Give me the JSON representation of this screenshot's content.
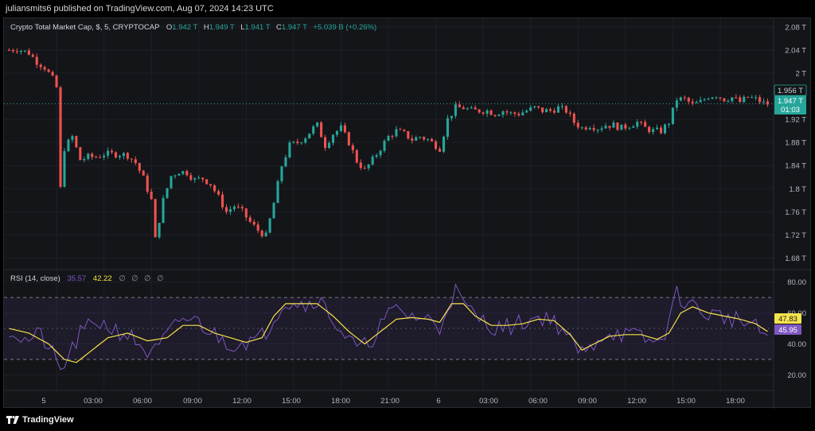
{
  "header": {
    "published_text": "juliansmits6 published on TradingView.com, Aug 07, 2024 14:23 UTC"
  },
  "legend": {
    "symbol": "Crypto Total Market Cap, $, 5, CRYPTOCAP",
    "o_label": "O",
    "o_value": "1.942 T",
    "h_label": "H",
    "h_value": "1.949 T",
    "l_label": "L",
    "l_value": "1.941 T",
    "c_label": "C",
    "c_value": "1.947 T",
    "change": "+5.039 B (+0.26%)"
  },
  "price_axis": {
    "ticks": [
      "2.08 T",
      "2.04 T",
      "2 T",
      "1.92 T",
      "1.88 T",
      "1.84 T",
      "1.8 T",
      "1.76 T",
      "1.72 T",
      "1.68 T"
    ],
    "tick_values": [
      2.08,
      2.04,
      2.0,
      1.92,
      1.88,
      1.84,
      1.8,
      1.76,
      1.72,
      1.68
    ],
    "last_price_label": "1.947 T",
    "countdown_label": "01:03",
    "prev_label": "1.956 T"
  },
  "rsi": {
    "title": "RSI (14, close)",
    "rsi_value": "35.57",
    "ma_value": "42.22",
    "extra_icons": [
      "∅",
      "∅",
      "∅",
      "∅"
    ],
    "axis_ticks": [
      "80.00",
      "60.00",
      "40.00",
      "20.00"
    ],
    "axis_values": [
      80,
      60,
      40,
      20
    ],
    "ma_badge": "47.83",
    "rsi_badge": "45.95",
    "upper_band": 70,
    "middle_band": 50,
    "lower_band": 30
  },
  "time_axis": {
    "labels": [
      "5",
      "03:00",
      "06:00",
      "09:00",
      "12:00",
      "15:00",
      "18:00",
      "21:00",
      "6",
      "03:00",
      "06:00",
      "09:00",
      "12:00",
      "15:00",
      "18:00"
    ]
  },
  "footer": {
    "brand": "TradingView"
  },
  "colors": {
    "up": "#26a69a",
    "down": "#ef5350",
    "rsi_line": "#7e57c2",
    "rsi_ma": "#f7e34a",
    "last_price_bg": "#26a69a",
    "band_fill": "#7e57c2"
  },
  "chart_data": [
    {
      "type": "candlestick",
      "title": "Crypto Total Market Cap, $, 5, CRYPTOCAP",
      "unit": "T USD",
      "ylim": [
        1.66,
        2.095
      ],
      "anchor_points": [
        [
          0,
          2.04
        ],
        [
          2,
          2.042
        ],
        [
          5,
          2.035
        ],
        [
          7,
          2.02
        ],
        [
          9,
          2.01
        ],
        [
          11,
          1.99
        ],
        [
          12,
          1.975
        ],
        [
          13,
          1.8
        ],
        [
          14,
          1.87
        ],
        [
          16,
          1.89
        ],
        [
          18,
          1.85
        ],
        [
          20,
          1.855
        ],
        [
          22,
          1.855
        ],
        [
          24,
          1.86
        ],
        [
          26,
          1.86
        ],
        [
          28,
          1.86
        ],
        [
          30,
          1.858
        ],
        [
          32,
          1.845
        ],
        [
          34,
          1.818
        ],
        [
          36,
          1.78
        ],
        [
          37,
          1.712
        ],
        [
          39,
          1.78
        ],
        [
          41,
          1.822
        ],
        [
          43,
          1.83
        ],
        [
          45,
          1.828
        ],
        [
          47,
          1.815
        ],
        [
          49,
          1.818
        ],
        [
          51,
          1.808
        ],
        [
          53,
          1.785
        ],
        [
          55,
          1.76
        ],
        [
          57,
          1.77
        ],
        [
          59,
          1.76
        ],
        [
          61,
          1.742
        ],
        [
          63,
          1.728
        ],
        [
          65,
          1.718
        ],
        [
          67,
          1.775
        ],
        [
          69,
          1.84
        ],
        [
          71,
          1.875
        ],
        [
          73,
          1.88
        ],
        [
          75,
          1.89
        ],
        [
          77,
          1.905
        ],
        [
          78,
          1.91
        ],
        [
          80,
          1.875
        ],
        [
          82,
          1.895
        ],
        [
          84,
          1.905
        ],
        [
          86,
          1.88
        ],
        [
          88,
          1.848
        ],
        [
          90,
          1.832
        ],
        [
          92,
          1.85
        ],
        [
          94,
          1.87
        ],
        [
          96,
          1.89
        ],
        [
          98,
          1.9
        ],
        [
          100,
          1.895
        ],
        [
          102,
          1.885
        ],
        [
          104,
          1.89
        ],
        [
          106,
          1.885
        ],
        [
          108,
          1.875
        ],
        [
          109,
          1.87
        ],
        [
          111,
          1.92
        ],
        [
          113,
          1.94
        ],
        [
          115,
          1.94
        ],
        [
          117,
          1.935
        ],
        [
          119,
          1.935
        ],
        [
          121,
          1.935
        ],
        [
          123,
          1.93
        ],
        [
          125,
          1.935
        ],
        [
          127,
          1.93
        ],
        [
          129,
          1.93
        ],
        [
          131,
          1.935
        ],
        [
          133,
          1.94
        ],
        [
          135,
          1.935
        ],
        [
          137,
          1.935
        ],
        [
          139,
          1.94
        ],
        [
          141,
          1.935
        ],
        [
          143,
          1.915
        ],
        [
          145,
          1.905
        ],
        [
          147,
          1.91
        ],
        [
          149,
          1.905
        ],
        [
          151,
          1.91
        ],
        [
          153,
          1.91
        ],
        [
          155,
          1.905
        ],
        [
          157,
          1.91
        ],
        [
          159,
          1.915
        ],
        [
          161,
          1.905
        ],
        [
          163,
          1.9
        ],
        [
          165,
          1.9
        ],
        [
          167,
          1.915
        ],
        [
          169,
          1.955
        ],
        [
          171,
          1.955
        ],
        [
          173,
          1.945
        ],
        [
          175,
          1.95
        ],
        [
          177,
          1.96
        ],
        [
          179,
          1.962
        ],
        [
          181,
          1.955
        ],
        [
          183,
          1.958
        ],
        [
          185,
          1.95
        ],
        [
          187,
          1.958
        ],
        [
          189,
          1.955
        ],
        [
          191,
          1.948
        ],
        [
          192,
          1.947
        ]
      ]
    },
    {
      "type": "line",
      "title": "RSI (14, close)",
      "ylim": [
        10,
        88
      ],
      "rsi_anchors": [
        [
          0,
          50
        ],
        [
          4,
          42
        ],
        [
          8,
          46
        ],
        [
          11,
          33
        ],
        [
          13,
          22
        ],
        [
          15,
          32
        ],
        [
          18,
          46
        ],
        [
          22,
          55
        ],
        [
          26,
          50
        ],
        [
          30,
          46
        ],
        [
          33,
          40
        ],
        [
          36,
          32
        ],
        [
          40,
          45
        ],
        [
          44,
          57
        ],
        [
          48,
          54
        ],
        [
          52,
          46
        ],
        [
          56,
          40
        ],
        [
          60,
          42
        ],
        [
          63,
          42
        ],
        [
          66,
          52
        ],
        [
          69,
          66
        ],
        [
          72,
          68
        ],
        [
          75,
          65
        ],
        [
          78,
          70
        ],
        [
          82,
          56
        ],
        [
          86,
          42
        ],
        [
          89,
          36
        ],
        [
          92,
          44
        ],
        [
          95,
          56
        ],
        [
          98,
          62
        ],
        [
          102,
          58
        ],
        [
          106,
          56
        ],
        [
          109,
          50
        ],
        [
          111,
          66
        ],
        [
          113,
          74
        ],
        [
          116,
          62
        ],
        [
          120,
          55
        ],
        [
          124,
          50
        ],
        [
          128,
          52
        ],
        [
          132,
          56
        ],
        [
          136,
          58
        ],
        [
          140,
          50
        ],
        [
          143,
          38
        ],
        [
          146,
          33
        ],
        [
          149,
          44
        ],
        [
          152,
          48
        ],
        [
          156,
          46
        ],
        [
          160,
          44
        ],
        [
          164,
          40
        ],
        [
          166,
          48
        ],
        [
          169,
          72
        ],
        [
          172,
          66
        ],
        [
          176,
          60
        ],
        [
          180,
          58
        ],
        [
          184,
          56
        ],
        [
          188,
          52
        ],
        [
          192,
          45
        ]
      ],
      "ma_anchors": [
        [
          0,
          50
        ],
        [
          5,
          47
        ],
        [
          10,
          40
        ],
        [
          14,
          30
        ],
        [
          17,
          28
        ],
        [
          21,
          36
        ],
        [
          25,
          44
        ],
        [
          30,
          47
        ],
        [
          35,
          42
        ],
        [
          40,
          44
        ],
        [
          44,
          52
        ],
        [
          48,
          52
        ],
        [
          52,
          47
        ],
        [
          56,
          44
        ],
        [
          60,
          41
        ],
        [
          64,
          44
        ],
        [
          67,
          58
        ],
        [
          70,
          66
        ],
        [
          74,
          66
        ],
        [
          78,
          66
        ],
        [
          82,
          58
        ],
        [
          86,
          48
        ],
        [
          90,
          40
        ],
        [
          94,
          48
        ],
        [
          98,
          56
        ],
        [
          102,
          57
        ],
        [
          106,
          56
        ],
        [
          109,
          54
        ],
        [
          112,
          66
        ],
        [
          115,
          66
        ],
        [
          118,
          58
        ],
        [
          122,
          52
        ],
        [
          126,
          52
        ],
        [
          130,
          53
        ],
        [
          134,
          56
        ],
        [
          138,
          55
        ],
        [
          142,
          46
        ],
        [
          145,
          36
        ],
        [
          148,
          40
        ],
        [
          152,
          45
        ],
        [
          156,
          46
        ],
        [
          160,
          46
        ],
        [
          164,
          43
        ],
        [
          167,
          47
        ],
        [
          170,
          60
        ],
        [
          173,
          64
        ],
        [
          177,
          60
        ],
        [
          181,
          58
        ],
        [
          185,
          56
        ],
        [
          189,
          53
        ],
        [
          192,
          48
        ]
      ]
    }
  ]
}
